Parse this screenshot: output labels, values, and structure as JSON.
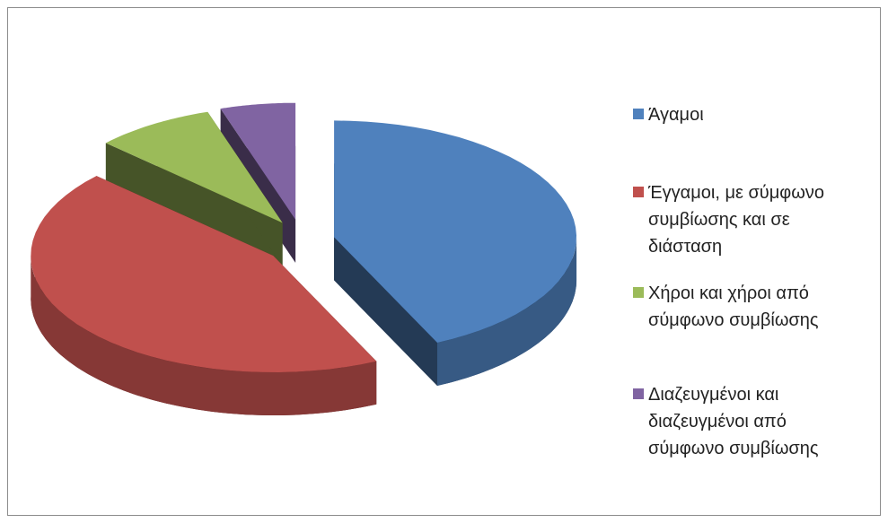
{
  "chart_data": {
    "type": "pie",
    "categories": [
      "Άγαμοι",
      "Έγγαμοι, με σύμφωνο συμβίωσης και σε διάσταση",
      "Χήροι και χήροι από σύμφωνο συμβίωσης",
      "Διαζευγμένοι και διαζευγμένοι από σύμφωνο συμβίωσης"
    ],
    "values": [
      43,
      44,
      8,
      5
    ],
    "colors": [
      "#4f81bd",
      "#c0504d",
      "#9bbb59",
      "#8064a2"
    ],
    "legend": "right"
  }
}
